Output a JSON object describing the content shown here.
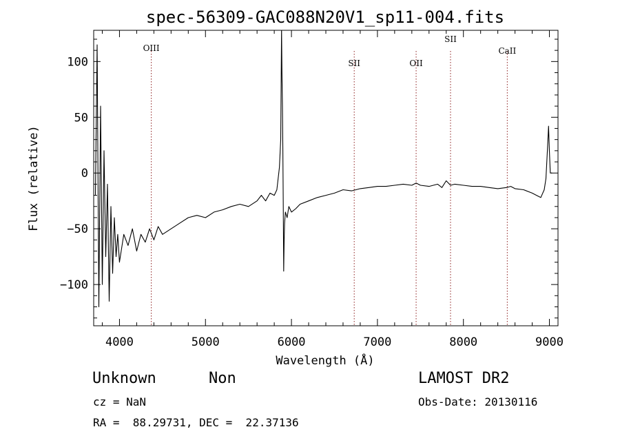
{
  "chart_data": {
    "type": "line",
    "title": "spec-56309-GAC088N20V1_sp11-004.fits",
    "xlabel": "Wavelength (Å)",
    "ylabel": "Flux (relative)",
    "xlim": [
      3700,
      9100
    ],
    "ylim": [
      -137,
      128
    ],
    "xticks": [
      4000,
      5000,
      6000,
      7000,
      8000,
      9000
    ],
    "yticks": [
      -100,
      -50,
      0,
      50,
      100
    ],
    "grid": false,
    "line_color": "#000000",
    "marker_color": "#8b1a1a",
    "spectral_lines": [
      {
        "label": "OIII",
        "x": 4370
      },
      {
        "label": "SII",
        "x": 6730
      },
      {
        "label": "OII",
        "x": 7450
      },
      {
        "label": "SII",
        "x": 7850
      },
      {
        "label": "CaII",
        "x": 8510
      }
    ],
    "series": [
      {
        "x": [
          3720,
          3740,
          3760,
          3780,
          3800,
          3820,
          3840,
          3860,
          3880,
          3900,
          3920,
          3940,
          3960,
          3980,
          4000,
          4050,
          4100,
          4150,
          4200,
          4250,
          4300,
          4350,
          4400,
          4450,
          4500,
          4600,
          4700,
          4800,
          4900,
          5000,
          5100,
          5200,
          5300,
          5400,
          5500,
          5600,
          5650,
          5700,
          5750,
          5800,
          5830,
          5860,
          5875,
          5885,
          5890,
          5895,
          5900,
          5905,
          5910,
          5915,
          5920,
          5930,
          5950,
          5970,
          6000,
          6050,
          6100,
          6200,
          6300,
          6400,
          6500,
          6600,
          6700,
          6800,
          6900,
          7000,
          7100,
          7200,
          7300,
          7400,
          7450,
          7500,
          7600,
          7700,
          7750,
          7800,
          7850,
          7900,
          8000,
          8100,
          8200,
          8300,
          8400,
          8500,
          8550,
          8600,
          8700,
          8800,
          8850,
          8900,
          8940,
          8960,
          8980,
          8990,
          9000,
          9010,
          9030
        ],
        "y": [
          -20,
          115,
          -120,
          60,
          -100,
          20,
          -75,
          -10,
          -115,
          -30,
          -90,
          -40,
          -75,
          -55,
          -80,
          -55,
          -65,
          -50,
          -70,
          -55,
          -62,
          -50,
          -60,
          -48,
          -55,
          -50,
          -45,
          -40,
          -38,
          -40,
          -35,
          -33,
          -30,
          -28,
          -30,
          -25,
          -20,
          -25,
          -18,
          -20,
          -15,
          5,
          30,
          130,
          90,
          60,
          20,
          -30,
          -88,
          -60,
          -45,
          -35,
          -40,
          -30,
          -35,
          -32,
          -28,
          -25,
          -22,
          -20,
          -18,
          -15,
          -16,
          -14,
          -13,
          -12,
          -12,
          -11,
          -10,
          -11,
          -9,
          -11,
          -12,
          -10,
          -13,
          -7,
          -11,
          -10,
          -11,
          -12,
          -12,
          -13,
          -14,
          -13,
          -12,
          -14,
          -15,
          -18,
          -20,
          -22,
          -15,
          -5,
          25,
          42,
          20,
          0,
          0
        ]
      }
    ]
  },
  "footer": {
    "object_class": "Unknown",
    "object_subclass": "Non",
    "survey": "LAMOST DR2",
    "cz": "cz = NaN",
    "obs_date": "Obs-Date: 20130116",
    "coords": "RA =  88.29731, DEC =  22.37136"
  }
}
